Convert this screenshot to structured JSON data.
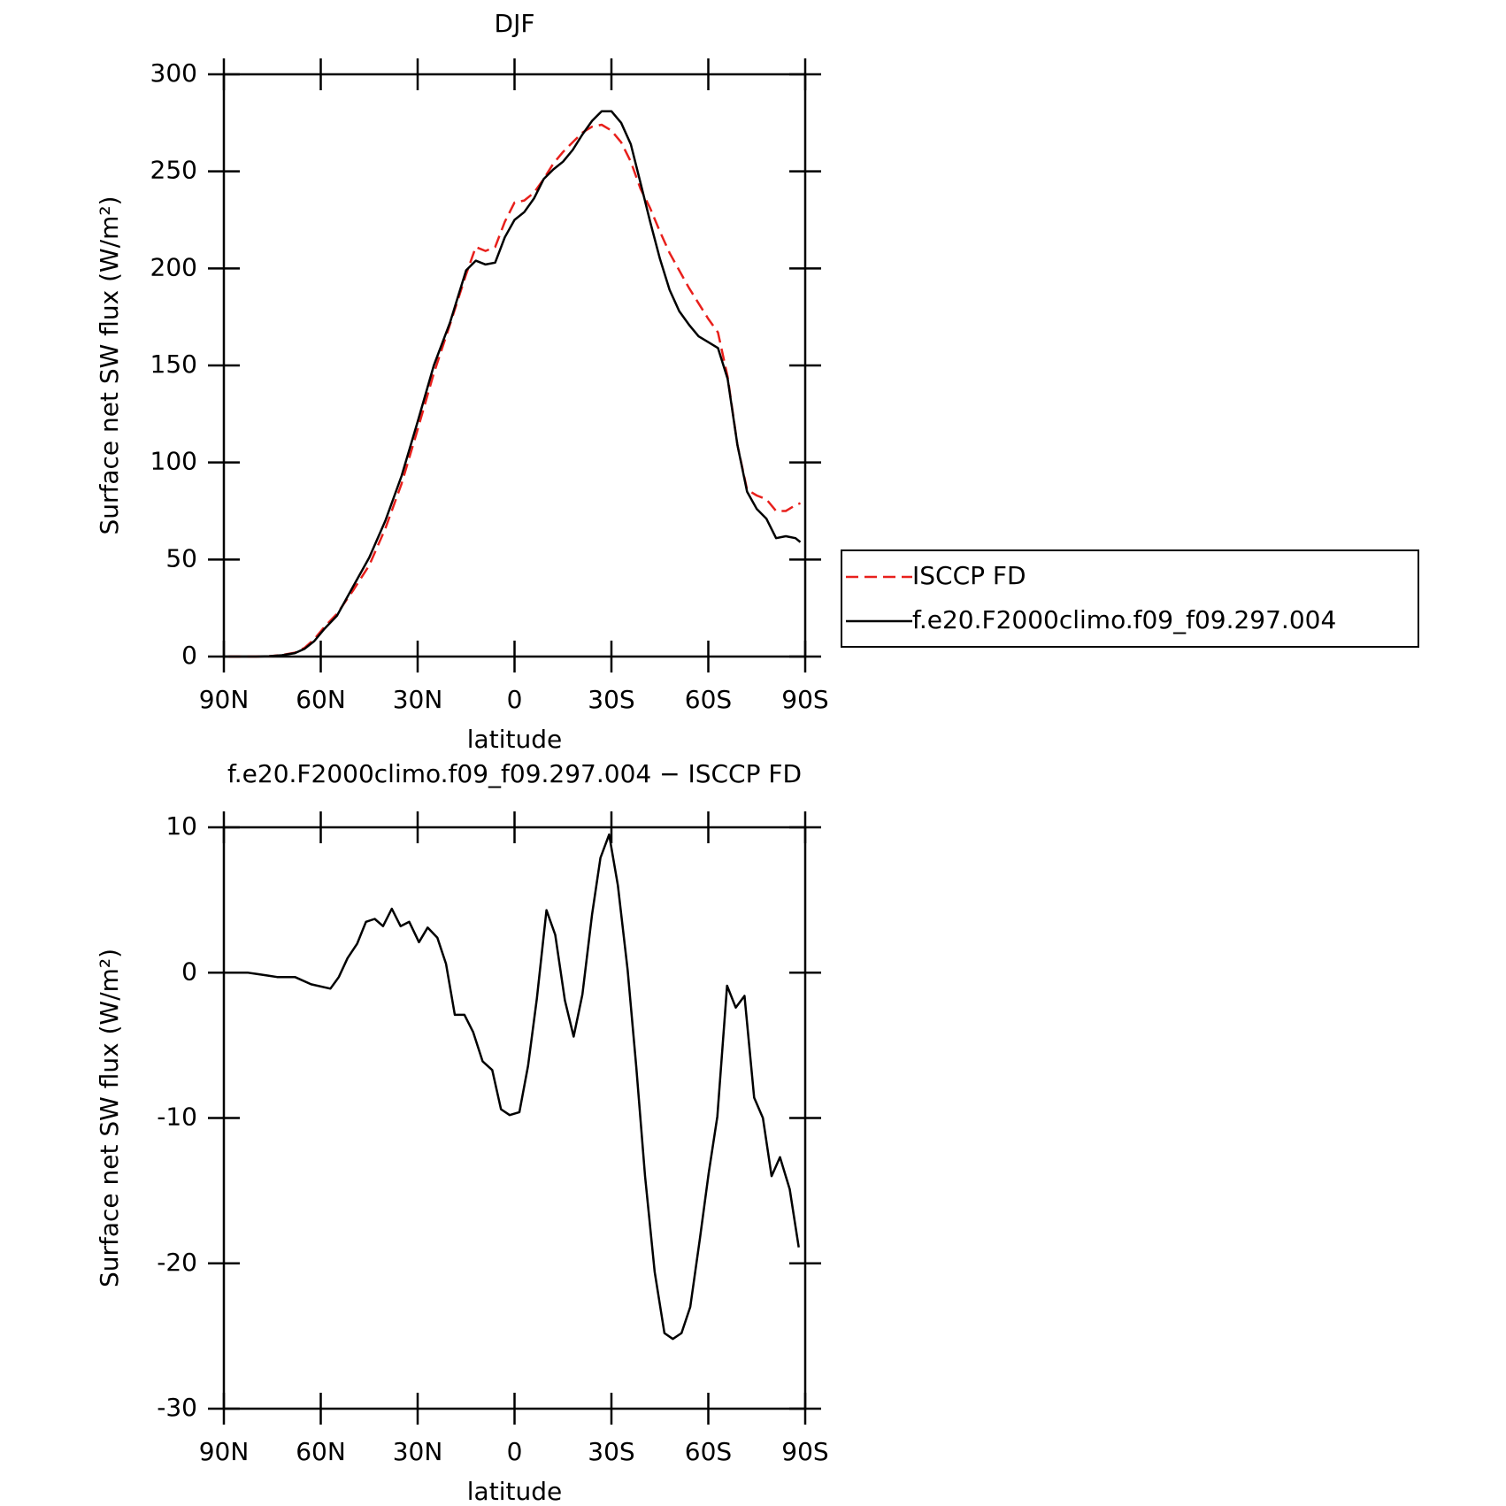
{
  "chart_data": [
    {
      "type": "line",
      "title": "DJF",
      "xlabel": "latitude",
      "ylabel": "Surface net SW flux (W/m²)",
      "x": [
        88.5,
        84,
        80,
        76,
        72,
        68,
        65,
        62,
        59,
        55,
        50,
        45,
        40,
        35,
        30,
        25,
        20,
        15,
        12,
        9,
        6,
        3,
        0,
        -3,
        -6,
        -9,
        -12,
        -15,
        -18,
        -21,
        -24,
        -27,
        -30,
        -33,
        -36,
        -39,
        -42,
        -45,
        -48,
        -51,
        -54,
        -57,
        -60,
        -63,
        -66,
        -69,
        -72,
        -75,
        -78,
        -81,
        -84,
        -87,
        -88.5
      ],
      "series": [
        {
          "name": "ISCCP FD",
          "color": "#e8201c",
          "linestyle": "dashed",
          "values": [
            0,
            0,
            0,
            0.2,
            0.8,
            2,
            4.5,
            9,
            15,
            22,
            34,
            47,
            66,
            89,
            117,
            146,
            171,
            197,
            211,
            209,
            211,
            224,
            234,
            235,
            239,
            246,
            254,
            260,
            265,
            270,
            273,
            274,
            271,
            265,
            255,
            241,
            231,
            219,
            208,
            199,
            190,
            182,
            174,
            167,
            144,
            109,
            86,
            83,
            81,
            75,
            75,
            78,
            79
          ]
        },
        {
          "name": "f.e20.F2000climo.f09_f09.297.004",
          "color": "#000000",
          "linestyle": "solid",
          "values": [
            0,
            0,
            0,
            0.2,
            0.7,
            1.8,
            4,
            8,
            14,
            21,
            36,
            51,
            70,
            93,
            121,
            150,
            172,
            199,
            204,
            202,
            203,
            216,
            225,
            229,
            236,
            246,
            251,
            255,
            261,
            269,
            276,
            281,
            281,
            275,
            264,
            244,
            224,
            205,
            189,
            178,
            171,
            165,
            162,
            159,
            143,
            109,
            85,
            76,
            71,
            61,
            62,
            61,
            59
          ]
        }
      ],
      "xlim": [
        90,
        -90
      ],
      "xticks": [
        {
          "value": 90,
          "label": "90N"
        },
        {
          "value": 60,
          "label": "60N"
        },
        {
          "value": 30,
          "label": "30N"
        },
        0,
        {
          "value": -30,
          "label": "30S"
        },
        {
          "value": -60,
          "label": "60S"
        },
        {
          "value": -90,
          "label": "90S"
        }
      ],
      "ylim": [
        0,
        300
      ],
      "yticks": [
        0,
        50,
        100,
        150,
        200,
        250,
        300
      ],
      "legend": "right"
    },
    {
      "type": "line",
      "title": "f.e20.F2000climo.f09_f09.297.004 − ISCCP FD",
      "xlabel": "latitude",
      "ylabel": "Surface net SW flux (W/m²)",
      "x": [
        88.5,
        85.5,
        82.5,
        79.5,
        76.5,
        73.5,
        68,
        63,
        57,
        54.4,
        51.7,
        48.7,
        46,
        43.3,
        40.7,
        38,
        35.3,
        32.6,
        29.6,
        26.9,
        23.9,
        21.2,
        18.5,
        15.5,
        12.8,
        9.9,
        6.9,
        4.2,
        1.5,
        -1.5,
        -4.2,
        -6.9,
        -9.9,
        -12.6,
        -15.6,
        -18.3,
        -21,
        -24,
        -26.6,
        -29.3,
        -32,
        -35,
        -37.7,
        -40.4,
        -43.4,
        -46.4,
        -49,
        -51.7,
        -54.4,
        -57.4,
        -60.1,
        -62.8,
        -65.8,
        -68.5,
        -71.2,
        -74.2,
        -76.9,
        -79.6,
        -82.2,
        -85.2,
        -88
      ],
      "series": [
        {
          "color": "#000000",
          "linestyle": "solid",
          "values": [
            0,
            0,
            0,
            -0.1,
            -0.2,
            -0.3,
            -0.3,
            -0.8,
            -1.1,
            -0.3,
            1.0,
            2.0,
            3.5,
            3.7,
            3.2,
            4.4,
            3.2,
            3.5,
            2.1,
            3.1,
            2.4,
            0.6,
            -2.9,
            -2.9,
            -4.1,
            -6.1,
            -6.7,
            -9.4,
            -9.8,
            -9.6,
            -6.4,
            -1.8,
            4.3,
            2.6,
            -1.9,
            -4.4,
            -1.5,
            4.0,
            7.9,
            9.5,
            6.0,
            0.2,
            -6.5,
            -14,
            -20.6,
            -24.8,
            -25.2,
            -24.8,
            -23.0,
            -18.3,
            -13.8,
            -9.9,
            -0.9,
            -2.4,
            -1.6,
            -8.6,
            -10,
            -14,
            -12.7,
            -14.9,
            -18.9
          ]
        }
      ],
      "xlim": [
        90,
        -90
      ],
      "xticks": [
        {
          "value": 90,
          "label": "90N"
        },
        {
          "value": 60,
          "label": "60N"
        },
        {
          "value": 30,
          "label": "30N"
        },
        0,
        {
          "value": -30,
          "label": "30S"
        },
        {
          "value": -60,
          "label": "60S"
        },
        {
          "value": -90,
          "label": "90S"
        }
      ],
      "ylim": [
        -30,
        10
      ],
      "yticks": [
        -30,
        -20,
        -10,
        0,
        10
      ]
    }
  ]
}
